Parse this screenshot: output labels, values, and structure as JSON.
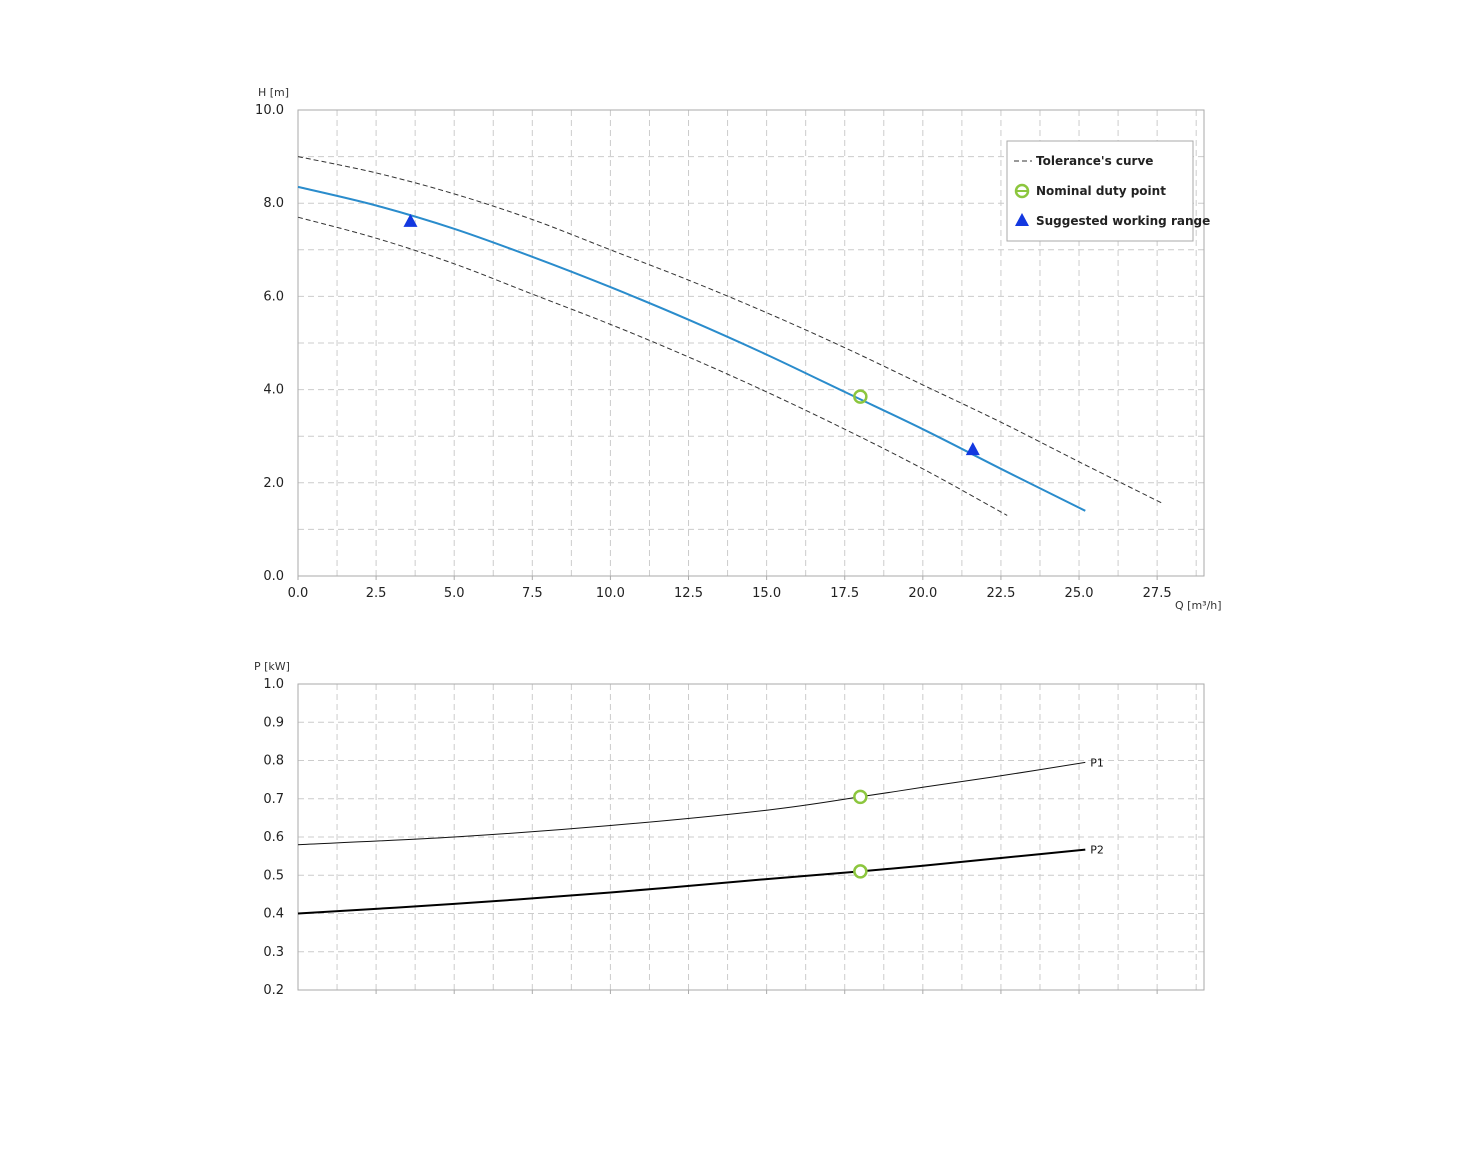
{
  "colors": {
    "pump_curve": "#2a8ccc",
    "tolerance": "#333333",
    "duty_point": "#8cc63e",
    "working_range": "#1338e0",
    "grid": "#cccccc",
    "frame": "#aaaaaa",
    "p1": "#111111",
    "p2": "#000000"
  },
  "chart_data": [
    {
      "type": "line",
      "xlabel": "Q [m³/h]",
      "ylabel": "H [m]",
      "xlim": [
        0,
        29
      ],
      "ylim": [
        0,
        10
      ],
      "x_ticks": [
        "0.0",
        "2.5",
        "5.0",
        "7.5",
        "10.0",
        "12.5",
        "15.0",
        "17.5",
        "20.0",
        "22.5",
        "25.0",
        "27.5"
      ],
      "y_ticks": [
        "0.0",
        "2.0",
        "4.0",
        "6.0",
        "8.0",
        "10.0"
      ],
      "grid": true,
      "legend_position": "top-right",
      "legend": [
        {
          "label": "Tolerance's curve",
          "icon": "dashed-line-icon"
        },
        {
          "label": "Nominal duty point",
          "icon": "green-circle-icon"
        },
        {
          "label": "Suggested working range",
          "icon": "blue-triangle-icon"
        }
      ],
      "series": [
        {
          "style": "solid-blue",
          "points": [
            [
              0,
              8.35
            ],
            [
              2.5,
              7.95
            ],
            [
              5,
              7.45
            ],
            [
              7.5,
              6.85
            ],
            [
              10,
              6.2
            ],
            [
              12.5,
              5.5
            ],
            [
              15,
              4.75
            ],
            [
              17.5,
              3.95
            ],
            [
              20,
              3.15
            ],
            [
              22.5,
              2.3
            ],
            [
              25.2,
              1.4
            ]
          ]
        },
        {
          "style": "dashed-upper",
          "points": [
            [
              0,
              9.0
            ],
            [
              2.5,
              8.65
            ],
            [
              5,
              8.2
            ],
            [
              7.5,
              7.65
            ],
            [
              10,
              7.0
            ],
            [
              12.5,
              6.35
            ],
            [
              15,
              5.65
            ],
            [
              17.5,
              4.9
            ],
            [
              20,
              4.1
            ],
            [
              22.5,
              3.3
            ],
            [
              25,
              2.45
            ],
            [
              27.7,
              1.55
            ]
          ]
        },
        {
          "style": "dashed-lower",
          "points": [
            [
              0,
              7.7
            ],
            [
              2.5,
              7.25
            ],
            [
              5,
              6.7
            ],
            [
              7.5,
              6.05
            ],
            [
              10,
              5.4
            ],
            [
              12.5,
              4.7
            ],
            [
              15,
              3.95
            ],
            [
              17.5,
              3.15
            ],
            [
              20,
              2.3
            ],
            [
              22.7,
              1.3
            ]
          ]
        }
      ],
      "duty_point": [
        18,
        3.85
      ],
      "working_range_points": [
        [
          3.6,
          7.6
        ],
        [
          21.6,
          2.7
        ]
      ]
    },
    {
      "type": "line",
      "ylabel": "P [kW]",
      "xlim": [
        0,
        29
      ],
      "ylim": [
        0.2,
        1.0
      ],
      "y_ticks": [
        "0.2",
        "0.3",
        "0.4",
        "0.5",
        "0.6",
        "0.7",
        "0.8",
        "0.9",
        "1.0"
      ],
      "grid": true,
      "series": [
        {
          "name": "P1",
          "style": "thin",
          "points": [
            [
              0,
              0.58
            ],
            [
              5,
              0.6
            ],
            [
              10,
              0.63
            ],
            [
              15,
              0.67
            ],
            [
              18,
              0.705
            ],
            [
              20,
              0.73
            ],
            [
              22.5,
              0.76
            ],
            [
              25.2,
              0.795
            ]
          ]
        },
        {
          "name": "P2",
          "style": "thick",
          "points": [
            [
              0,
              0.4
            ],
            [
              5,
              0.425
            ],
            [
              10,
              0.455
            ],
            [
              15,
              0.49
            ],
            [
              18,
              0.51
            ],
            [
              20,
              0.525
            ],
            [
              22.5,
              0.545
            ],
            [
              25.2,
              0.567
            ]
          ]
        }
      ],
      "duty_points": [
        [
          18,
          0.705
        ],
        [
          18,
          0.51
        ]
      ]
    }
  ]
}
